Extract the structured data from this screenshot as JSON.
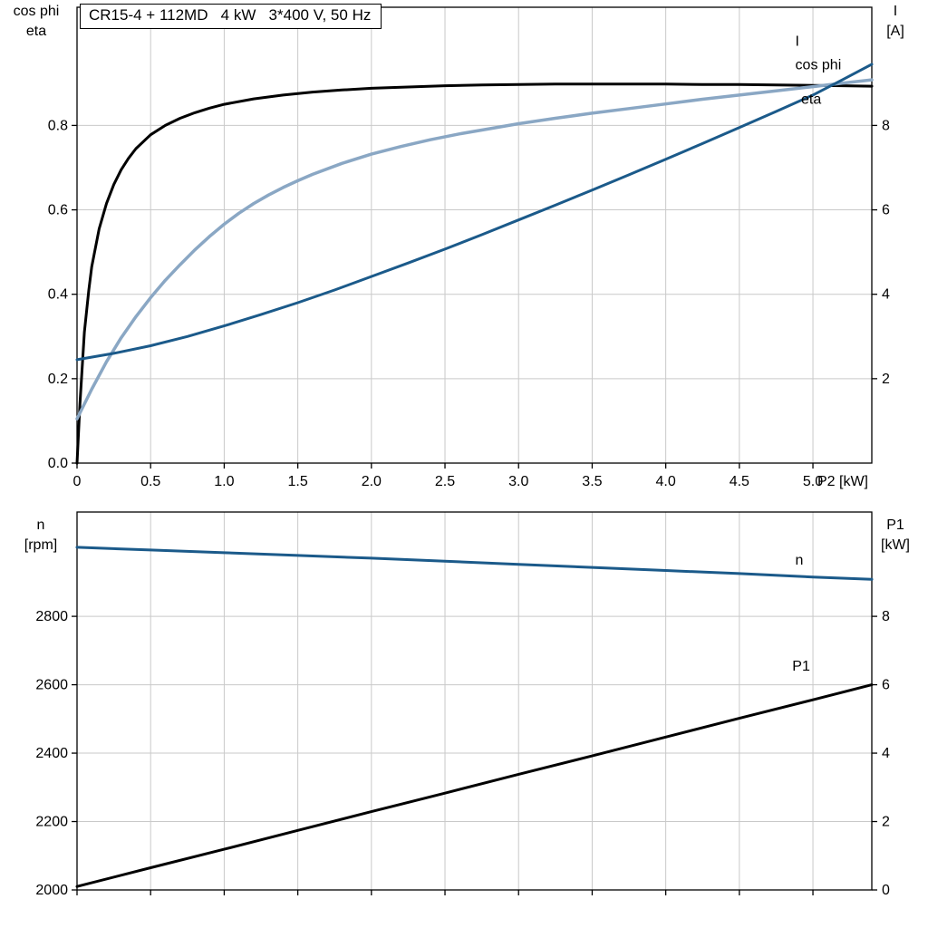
{
  "colors": {
    "dark_blue": "#1b5a8a",
    "light_blue": "#8aa7c4",
    "black": "#000000",
    "grid": "#c9c9c9",
    "axis": "#000000",
    "background": "#ffffff"
  },
  "chart_data": [
    {
      "id": "top",
      "type": "line",
      "title": "CR15-4 + 112MD   4 kW   3*400 V, 50 Hz",
      "x_axis": {
        "min": 0,
        "max": 5.4,
        "ticks": [
          0,
          0.5,
          1.0,
          1.5,
          2.0,
          2.5,
          3.0,
          3.5,
          4.0,
          4.5,
          5.0
        ],
        "tick_labels": [
          "0",
          "0.5",
          "1.0",
          "1.5",
          "2.0",
          "2.5",
          "3.0",
          "3.5",
          "4.0",
          "4.5",
          "5.0"
        ],
        "label": "P2 [kW]"
      },
      "y_left": {
        "min": 0,
        "max": 1.08,
        "ticks": [
          0.0,
          0.2,
          0.4,
          0.6,
          0.8
        ],
        "tick_labels": [
          "0.0",
          "0.2",
          "0.4",
          "0.6",
          "0.8"
        ],
        "title_lines": [
          "cos phi",
          "eta"
        ]
      },
      "y_right": {
        "min": 0,
        "max": 10.8,
        "ticks": [
          2,
          4,
          6,
          8
        ],
        "tick_labels": [
          "2",
          "4",
          "6",
          "8"
        ],
        "title_lines": [
          "I",
          "[A]"
        ]
      },
      "series": [
        {
          "name": "eta",
          "axis": "left",
          "color": "#000000",
          "width": 3,
          "label": {
            "text": "eta",
            "x": 4.92,
            "y": 0.862
          },
          "points": [
            [
              0,
              0
            ],
            [
              0.02,
              0.14
            ],
            [
              0.05,
              0.31
            ],
            [
              0.08,
              0.41
            ],
            [
              0.1,
              0.465
            ],
            [
              0.15,
              0.555
            ],
            [
              0.2,
              0.615
            ],
            [
              0.25,
              0.66
            ],
            [
              0.3,
              0.695
            ],
            [
              0.35,
              0.722
            ],
            [
              0.4,
              0.745
            ],
            [
              0.5,
              0.778
            ],
            [
              0.6,
              0.8
            ],
            [
              0.7,
              0.817
            ],
            [
              0.8,
              0.83
            ],
            [
              0.9,
              0.841
            ],
            [
              1.0,
              0.85
            ],
            [
              1.2,
              0.863
            ],
            [
              1.4,
              0.872
            ],
            [
              1.6,
              0.879
            ],
            [
              1.8,
              0.884
            ],
            [
              2.0,
              0.888
            ],
            [
              2.25,
              0.891
            ],
            [
              2.5,
              0.894
            ],
            [
              2.75,
              0.896
            ],
            [
              3.0,
              0.897
            ],
            [
              3.25,
              0.898
            ],
            [
              3.5,
              0.898
            ],
            [
              3.75,
              0.898
            ],
            [
              4.0,
              0.898
            ],
            [
              4.25,
              0.897
            ],
            [
              4.5,
              0.897
            ],
            [
              4.75,
              0.896
            ],
            [
              5.0,
              0.895
            ],
            [
              5.2,
              0.894
            ],
            [
              5.4,
              0.893
            ]
          ]
        },
        {
          "name": "cos phi",
          "axis": "left",
          "color": "#8aa7c4",
          "width": 3.5,
          "label": {
            "text": "cos phi",
            "x": 4.88,
            "y": 0.944
          },
          "points": [
            [
              0,
              0.105
            ],
            [
              0.1,
              0.175
            ],
            [
              0.2,
              0.24
            ],
            [
              0.3,
              0.297
            ],
            [
              0.4,
              0.347
            ],
            [
              0.5,
              0.392
            ],
            [
              0.6,
              0.433
            ],
            [
              0.7,
              0.47
            ],
            [
              0.8,
              0.505
            ],
            [
              0.9,
              0.537
            ],
            [
              1.0,
              0.566
            ],
            [
              1.1,
              0.592
            ],
            [
              1.2,
              0.615
            ],
            [
              1.3,
              0.635
            ],
            [
              1.4,
              0.653
            ],
            [
              1.5,
              0.669
            ],
            [
              1.6,
              0.684
            ],
            [
              1.8,
              0.71
            ],
            [
              2.0,
              0.732
            ],
            [
              2.2,
              0.75
            ],
            [
              2.4,
              0.766
            ],
            [
              2.6,
              0.78
            ],
            [
              2.8,
              0.792
            ],
            [
              3.0,
              0.804
            ],
            [
              3.25,
              0.817
            ],
            [
              3.5,
              0.829
            ],
            [
              3.75,
              0.84
            ],
            [
              4.0,
              0.851
            ],
            [
              4.25,
              0.862
            ],
            [
              4.5,
              0.872
            ],
            [
              4.75,
              0.882
            ],
            [
              5.0,
              0.892
            ],
            [
              5.2,
              0.9
            ],
            [
              5.4,
              0.908
            ]
          ]
        },
        {
          "name": "I",
          "axis": "right",
          "color": "#1b5a8a",
          "width": 3,
          "label": {
            "text": "I",
            "x": 4.88,
            "y": 10.0
          },
          "points": [
            [
              0,
              2.45
            ],
            [
              0.25,
              2.6
            ],
            [
              0.5,
              2.78
            ],
            [
              0.75,
              3.0
            ],
            [
              1.0,
              3.25
            ],
            [
              1.25,
              3.52
            ],
            [
              1.5,
              3.8
            ],
            [
              1.75,
              4.1
            ],
            [
              2.0,
              4.42
            ],
            [
              2.25,
              4.74
            ],
            [
              2.5,
              5.07
            ],
            [
              2.75,
              5.41
            ],
            [
              3.0,
              5.76
            ],
            [
              3.25,
              6.11
            ],
            [
              3.5,
              6.47
            ],
            [
              3.75,
              6.83
            ],
            [
              4.0,
              7.2
            ],
            [
              4.25,
              7.57
            ],
            [
              4.5,
              7.95
            ],
            [
              4.75,
              8.33
            ],
            [
              5.0,
              8.72
            ],
            [
              5.2,
              9.08
            ],
            [
              5.4,
              9.45
            ]
          ]
        }
      ]
    },
    {
      "id": "bottom",
      "type": "line",
      "title": "",
      "x_axis": {
        "min": 0,
        "max": 5.4,
        "ticks": [
          0,
          0.5,
          1.0,
          1.5,
          2.0,
          2.5,
          3.0,
          3.5,
          4.0,
          4.5,
          5.0
        ],
        "tick_labels": [],
        "label": ""
      },
      "y_left": {
        "min": 2000,
        "max": 3105,
        "ticks": [
          2000,
          2200,
          2400,
          2600,
          2800
        ],
        "tick_labels": [
          "2000",
          "2200",
          "2400",
          "2600",
          "2800"
        ],
        "title_lines": [
          "n",
          "[rpm]"
        ]
      },
      "y_right": {
        "min": 0,
        "max": 11.05,
        "ticks": [
          0,
          2,
          4,
          6,
          8
        ],
        "tick_labels": [
          "0",
          "2",
          "4",
          "6",
          "8"
        ],
        "title_lines": [
          "P1",
          "[kW]"
        ]
      },
      "series": [
        {
          "name": "P1",
          "axis": "right",
          "color": "#000000",
          "width": 3,
          "label": {
            "text": "P1",
            "x": 4.86,
            "y": 6.54
          },
          "points": [
            [
              0,
              0.1
            ],
            [
              0.5,
              0.65
            ],
            [
              1.0,
              1.19
            ],
            [
              1.5,
              1.74
            ],
            [
              2.0,
              2.29
            ],
            [
              2.5,
              2.83
            ],
            [
              3.0,
              3.38
            ],
            [
              3.5,
              3.92
            ],
            [
              4.0,
              4.47
            ],
            [
              4.5,
              5.02
            ],
            [
              5.0,
              5.56
            ],
            [
              5.4,
              6.0
            ]
          ]
        },
        {
          "name": "n",
          "axis": "left",
          "color": "#1b5a8a",
          "width": 3,
          "label": {
            "text": "n",
            "x": 4.88,
            "y": 2964
          },
          "points": [
            [
              0,
              3002
            ],
            [
              0.5,
              2994
            ],
            [
              1.0,
              2986
            ],
            [
              1.5,
              2978
            ],
            [
              2.0,
              2970
            ],
            [
              2.5,
              2961
            ],
            [
              3.0,
              2952
            ],
            [
              3.5,
              2943
            ],
            [
              4.0,
              2934
            ],
            [
              4.5,
              2925
            ],
            [
              5.0,
              2915
            ],
            [
              5.4,
              2908
            ]
          ]
        }
      ]
    }
  ]
}
